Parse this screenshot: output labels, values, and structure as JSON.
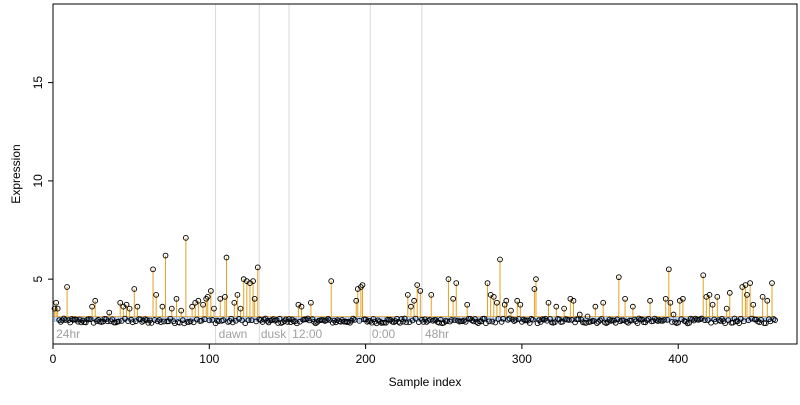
{
  "chart_data": {
    "type": "scatter",
    "title": "",
    "xlabel": "Sample index",
    "ylabel": "Expression",
    "xlim": [
      0,
      476
    ],
    "ylim": [
      1.7,
      19.0
    ],
    "x_ticks": [
      0,
      100,
      200,
      300,
      400
    ],
    "y_ticks": [
      5,
      10,
      15
    ],
    "x_tick_labels": [
      "0",
      "100",
      "200",
      "300",
      "400"
    ],
    "y_tick_labels": [
      "5",
      "10",
      "15"
    ],
    "baseline": 3.1,
    "grid": false,
    "legend": "none",
    "phase_lines": [
      104,
      132,
      151,
      203,
      236
    ],
    "phase_labels": [
      {
        "text": "24hr",
        "x": 2
      },
      {
        "text": "dawn",
        "x": 106
      },
      {
        "text": "dusk",
        "x": 133
      },
      {
        "text": "12:00",
        "x": 153
      },
      {
        "text": "0:00",
        "x": 204
      },
      {
        "text": "48hr",
        "x": 238
      }
    ],
    "n_samples": 462,
    "peaks": [
      {
        "x": 1,
        "y": 3.5
      },
      {
        "x": 2,
        "y": 3.8
      },
      {
        "x": 3,
        "y": 3.5
      },
      {
        "x": 9,
        "y": 4.6
      },
      {
        "x": 25,
        "y": 3.6
      },
      {
        "x": 27,
        "y": 3.9
      },
      {
        "x": 36,
        "y": 3.3
      },
      {
        "x": 43,
        "y": 3.8
      },
      {
        "x": 45,
        "y": 3.6
      },
      {
        "x": 47,
        "y": 3.7
      },
      {
        "x": 49,
        "y": 3.5
      },
      {
        "x": 52,
        "y": 4.5
      },
      {
        "x": 54,
        "y": 3.6
      },
      {
        "x": 64,
        "y": 5.5
      },
      {
        "x": 66,
        "y": 4.2
      },
      {
        "x": 70,
        "y": 3.6
      },
      {
        "x": 72,
        "y": 6.2
      },
      {
        "x": 76,
        "y": 3.5
      },
      {
        "x": 79,
        "y": 4.0
      },
      {
        "x": 82,
        "y": 3.4
      },
      {
        "x": 85,
        "y": 7.1
      },
      {
        "x": 89,
        "y": 3.6
      },
      {
        "x": 91,
        "y": 3.8
      },
      {
        "x": 93,
        "y": 3.9
      },
      {
        "x": 96,
        "y": 3.7
      },
      {
        "x": 98,
        "y": 4.0
      },
      {
        "x": 99,
        "y": 4.1
      },
      {
        "x": 101,
        "y": 4.4
      },
      {
        "x": 103,
        "y": 3.5
      },
      {
        "x": 107,
        "y": 4.0
      },
      {
        "x": 110,
        "y": 4.1
      },
      {
        "x": 111,
        "y": 6.1
      },
      {
        "x": 116,
        "y": 3.8
      },
      {
        "x": 118,
        "y": 4.2
      },
      {
        "x": 120,
        "y": 3.5
      },
      {
        "x": 122,
        "y": 5.0
      },
      {
        "x": 124,
        "y": 4.9
      },
      {
        "x": 126,
        "y": 4.8
      },
      {
        "x": 128,
        "y": 4.9
      },
      {
        "x": 129,
        "y": 4.0
      },
      {
        "x": 131,
        "y": 5.6
      },
      {
        "x": 157,
        "y": 3.7
      },
      {
        "x": 159,
        "y": 3.6
      },
      {
        "x": 165,
        "y": 3.8
      },
      {
        "x": 178,
        "y": 4.9
      },
      {
        "x": 194,
        "y": 3.9
      },
      {
        "x": 195,
        "y": 4.5
      },
      {
        "x": 197,
        "y": 4.6
      },
      {
        "x": 198,
        "y": 4.7
      },
      {
        "x": 227,
        "y": 4.2
      },
      {
        "x": 229,
        "y": 3.6
      },
      {
        "x": 231,
        "y": 3.9
      },
      {
        "x": 233,
        "y": 4.7
      },
      {
        "x": 235,
        "y": 4.4
      },
      {
        "x": 242,
        "y": 4.2
      },
      {
        "x": 253,
        "y": 5.0
      },
      {
        "x": 256,
        "y": 4.0
      },
      {
        "x": 258,
        "y": 4.8
      },
      {
        "x": 265,
        "y": 3.7
      },
      {
        "x": 278,
        "y": 4.8
      },
      {
        "x": 280,
        "y": 4.2
      },
      {
        "x": 282,
        "y": 4.1
      },
      {
        "x": 284,
        "y": 3.8
      },
      {
        "x": 286,
        "y": 6.0
      },
      {
        "x": 289,
        "y": 3.7
      },
      {
        "x": 290,
        "y": 3.9
      },
      {
        "x": 293,
        "y": 3.4
      },
      {
        "x": 297,
        "y": 3.9
      },
      {
        "x": 299,
        "y": 3.7
      },
      {
        "x": 308,
        "y": 4.5
      },
      {
        "x": 309,
        "y": 5.0
      },
      {
        "x": 317,
        "y": 3.8
      },
      {
        "x": 322,
        "y": 3.6
      },
      {
        "x": 327,
        "y": 3.5
      },
      {
        "x": 331,
        "y": 4.0
      },
      {
        "x": 333,
        "y": 3.9
      },
      {
        "x": 337,
        "y": 3.2
      },
      {
        "x": 342,
        "y": 3.1
      },
      {
        "x": 347,
        "y": 3.6
      },
      {
        "x": 352,
        "y": 3.8
      },
      {
        "x": 362,
        "y": 5.1
      },
      {
        "x": 366,
        "y": 4.0
      },
      {
        "x": 371,
        "y": 3.6
      },
      {
        "x": 382,
        "y": 3.9
      },
      {
        "x": 392,
        "y": 4.0
      },
      {
        "x": 394,
        "y": 5.5
      },
      {
        "x": 395,
        "y": 3.8
      },
      {
        "x": 397,
        "y": 3.2
      },
      {
        "x": 401,
        "y": 3.9
      },
      {
        "x": 403,
        "y": 4.0
      },
      {
        "x": 416,
        "y": 5.2
      },
      {
        "x": 418,
        "y": 4.1
      },
      {
        "x": 420,
        "y": 4.2
      },
      {
        "x": 422,
        "y": 3.7
      },
      {
        "x": 425,
        "y": 4.1
      },
      {
        "x": 431,
        "y": 3.5
      },
      {
        "x": 433,
        "y": 4.3
      },
      {
        "x": 441,
        "y": 4.6
      },
      {
        "x": 443,
        "y": 4.7
      },
      {
        "x": 444,
        "y": 4.2
      },
      {
        "x": 446,
        "y": 4.8
      },
      {
        "x": 448,
        "y": 3.7
      },
      {
        "x": 454,
        "y": 4.1
      },
      {
        "x": 457,
        "y": 3.9
      },
      {
        "x": 460,
        "y": 4.8
      }
    ],
    "colors": {
      "stem": "#e8a020",
      "baseline_band": "#8caee0",
      "phase_line": "#d9d9d9",
      "phase_text": "#a0a0a0",
      "point_stroke": "#000000"
    }
  }
}
